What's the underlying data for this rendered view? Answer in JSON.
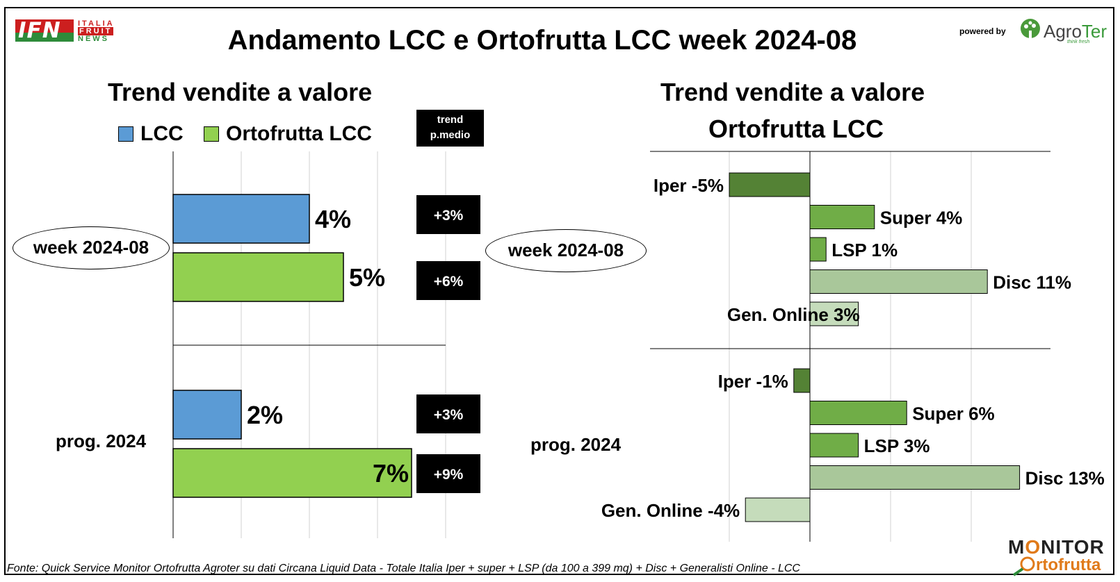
{
  "header": {
    "title": "Andamento LCC e Ortofrutta LCC week 2024-08",
    "ifn_logo": "IFN",
    "ifn_sub": [
      "ITALIA",
      "FRUIT",
      "NEWS"
    ],
    "powered_by": "powered by",
    "agroter_a": "Agro",
    "agroter_b": "Ter",
    "agroter_tagline": "think fresh"
  },
  "left": {
    "title": "Trend vendite a valore",
    "legend": [
      {
        "label": "LCC",
        "color": "#5b9bd5"
      },
      {
        "label": "Ortofrutta LCC",
        "color": "#92d050"
      }
    ],
    "trend_header": [
      "trend",
      "p.medio"
    ],
    "groups": [
      "week 2024-08",
      "prog. 2024"
    ]
  },
  "right": {
    "title_line1": "Trend vendite a valore",
    "title_line2": "Ortofrutta LCC",
    "groups": [
      "week 2024-08",
      "prog. 2024"
    ]
  },
  "chart_data": [
    {
      "type": "bar",
      "orientation": "horizontal",
      "title": "Trend vendite a valore",
      "categories": [
        "week 2024-08",
        "prog. 2024"
      ],
      "series": [
        {
          "name": "LCC",
          "values": [
            4,
            2
          ],
          "labels": [
            "4%",
            "2%"
          ],
          "color": "#5b9bd5"
        },
        {
          "name": "Ortofrutta LCC",
          "values": [
            5,
            7
          ],
          "labels": [
            "5%",
            "7%"
          ],
          "color": "#92d050"
        }
      ],
      "trend_p_medio": [
        [
          "+3%",
          "+6%"
        ],
        [
          "+3%",
          "+9%"
        ]
      ],
      "xlim": [
        0,
        8
      ],
      "grid": true
    },
    {
      "type": "bar",
      "orientation": "horizontal",
      "title": "Trend vendite a valore Ortofrutta LCC",
      "groups": [
        {
          "name": "week 2024-08",
          "bars": [
            {
              "label": "Iper -5%",
              "value": -5,
              "color": "#548235"
            },
            {
              "label": "Super 4%",
              "value": 4,
              "color": "#70ad47"
            },
            {
              "label": "LSP 1%",
              "value": 1,
              "color": "#70ad47"
            },
            {
              "label": "Disc 11%",
              "value": 11,
              "color": "#a9c79a"
            },
            {
              "label": "Gen. Online 3%",
              "value": 3,
              "color": "#c5dcbb"
            }
          ]
        },
        {
          "name": "prog. 2024",
          "bars": [
            {
              "label": "Iper -1%",
              "value": -1,
              "color": "#548235"
            },
            {
              "label": "Super 6%",
              "value": 6,
              "color": "#70ad47"
            },
            {
              "label": "LSP 3%",
              "value": 3,
              "color": "#70ad47"
            },
            {
              "label": "Disc 13%",
              "value": 13,
              "color": "#a9c79a"
            },
            {
              "label": "Gen. Online -4%",
              "value": -4,
              "color": "#c5dcbb"
            }
          ]
        }
      ],
      "xlim": [
        -10,
        15
      ],
      "grid": true
    }
  ],
  "footer": {
    "source": "Fonte: Quick Service Monitor Ortofrutta Agroter su dati Circana Liquid Data - Totale Italia Iper + super + LSP (da 100 a 399 mq) + Disc + Generalisti Online - LCC",
    "monitor_a": "M",
    "monitor_b": "NITOR",
    "monitor_sub": "rtofrutta"
  }
}
